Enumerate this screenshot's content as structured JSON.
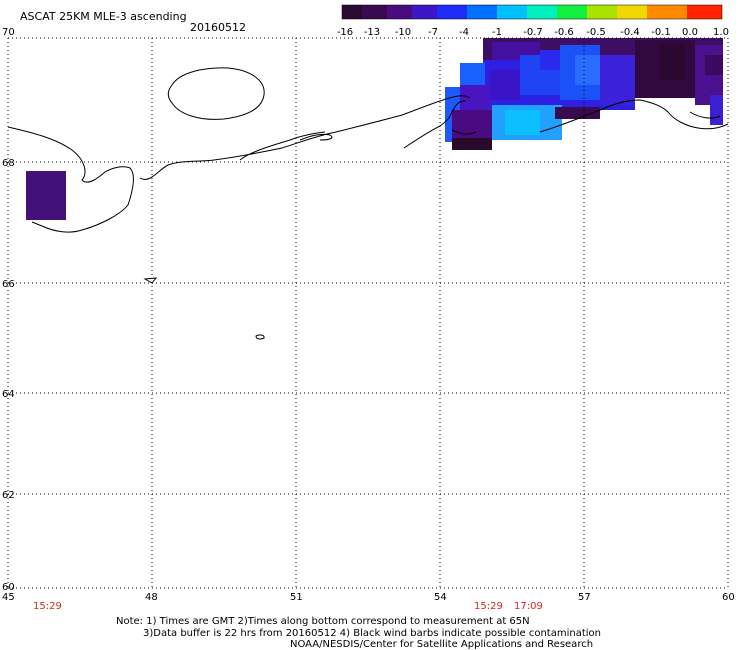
{
  "title": "ASCAT 25KM MLE-3 ascending",
  "date": "20160512",
  "colorbar": {
    "ticks": [
      "-16",
      "-13",
      "-10",
      "-7",
      "-4",
      "-1",
      "-0.7",
      "-0.6",
      "-0.5",
      "-0.4",
      "-0.1",
      "0.0",
      "1.0"
    ],
    "colors": [
      "#2a0a30",
      "#3c0a52",
      "#4a0a86",
      "#4214c4",
      "#2a22f0",
      "#0060ff",
      "#00b0ff",
      "#00e0e0",
      "#00ff60",
      "#a0e000",
      "#e8d000",
      "#ff7800",
      "#ff1a00"
    ]
  },
  "axes": {
    "lat_labels": [
      "70",
      "68",
      "66",
      "64",
      "62",
      "60"
    ],
    "lon_labels": [
      "45",
      "48",
      "51",
      "54",
      "57",
      "60"
    ]
  },
  "pass_times": [
    "15:29",
    "15:29",
    "17:09"
  ],
  "notes": [
    "Note: 1) Times are GMT 2)Times along bottom correspond to measurement at 65N",
    "3)Data buffer is 22 hrs from 20160512 4) Black wind barbs indicate possible contamination",
    "NOAA/NESDIS/Center for Satellite Applications and Research"
  ]
}
